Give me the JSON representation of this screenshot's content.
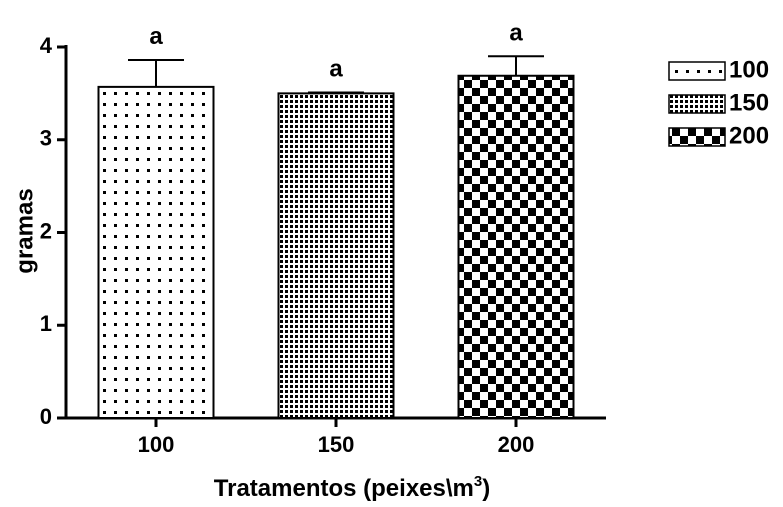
{
  "chart_data": {
    "type": "bar",
    "categories": [
      "100",
      "150",
      "200"
    ],
    "values": [
      3.57,
      3.5,
      3.69
    ],
    "errors": [
      0.29,
      0.01,
      0.21
    ],
    "significance": [
      "a",
      "a",
      "a"
    ],
    "xlabel": "Tratamentos (peixes\\m",
    "xlabel_superscript": "3",
    "xlabel_suffix": ")",
    "ylabel": "gramas",
    "ylim": [
      0,
      4
    ],
    "yticks": [
      "0",
      "1",
      "2",
      "3",
      "4"
    ],
    "grid": false,
    "legend_position": "right",
    "legend": [
      "100",
      "150",
      "200"
    ],
    "fills": [
      "sparse-dots",
      "fine-grid",
      "checkerboard"
    ],
    "colors": {
      "bar_outline": "#000000",
      "pattern": "#000000",
      "background": "#ffffff"
    }
  }
}
